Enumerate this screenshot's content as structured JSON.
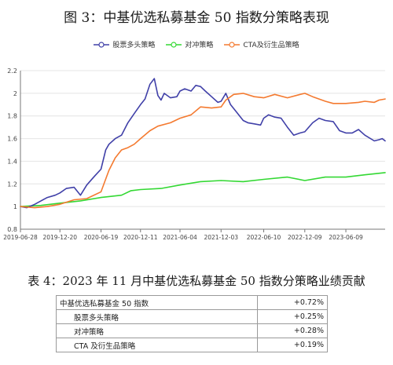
{
  "figure_title": "图 3：中基优选私募基金 50 指数分策略表现",
  "table_title": "表 4：2023 年 11 月中基优选私募基金 50 指数分策略业绩贡献",
  "colors": {
    "stock": "#4040a8",
    "hedge": "#33d833",
    "cta": "#f47a30",
    "grid": "#e4e4e4",
    "axis": "#777777"
  },
  "legend": [
    "股票多头策略",
    "对冲策略",
    "CTA及衍生品策略"
  ],
  "chart_data": {
    "type": "line",
    "title": "",
    "xlabel": "",
    "ylabel": "",
    "ylim": [
      0.8,
      2.2
    ],
    "yticks": [
      "0.8",
      "1",
      "1.2",
      "1.4",
      "1.6",
      "1.8",
      "2",
      "2.2"
    ],
    "xticks": [
      "2019-06-28",
      "2019-12-20",
      "2020-06-19",
      "2020-12-11",
      "2021-06-04",
      "2021-12-03",
      "2022-06-10",
      "2022-12-09",
      "2023-06-09"
    ],
    "grid": true,
    "legend_position": "top-center",
    "series": [
      {
        "name": "股票多头策略",
        "points": [
          [
            "2019-06-28",
            1.0
          ],
          [
            "2019-07-26",
            0.99
          ],
          [
            "2019-08-30",
            1.02
          ],
          [
            "2019-09-27",
            1.05
          ],
          [
            "2019-10-25",
            1.08
          ],
          [
            "2019-11-29",
            1.1
          ],
          [
            "2019-12-20",
            1.12
          ],
          [
            "2020-01-17",
            1.16
          ],
          [
            "2020-02-21",
            1.17
          ],
          [
            "2020-03-20",
            1.1
          ],
          [
            "2020-04-17",
            1.19
          ],
          [
            "2020-05-22",
            1.27
          ],
          [
            "2020-06-19",
            1.33
          ],
          [
            "2020-07-10",
            1.5
          ],
          [
            "2020-07-24",
            1.55
          ],
          [
            "2020-08-21",
            1.6
          ],
          [
            "2020-09-18",
            1.63
          ],
          [
            "2020-10-16",
            1.74
          ],
          [
            "2020-11-13",
            1.82
          ],
          [
            "2020-12-11",
            1.9
          ],
          [
            "2020-12-31",
            1.95
          ],
          [
            "2021-01-22",
            2.08
          ],
          [
            "2021-02-10",
            2.13
          ],
          [
            "2021-02-26",
            1.98
          ],
          [
            "2021-03-12",
            1.94
          ],
          [
            "2021-03-26",
            2.0
          ],
          [
            "2021-04-23",
            1.96
          ],
          [
            "2021-05-21",
            1.97
          ],
          [
            "2021-06-04",
            2.02
          ],
          [
            "2021-06-25",
            2.04
          ],
          [
            "2021-07-23",
            2.02
          ],
          [
            "2021-08-13",
            2.07
          ],
          [
            "2021-09-03",
            2.06
          ],
          [
            "2021-09-24",
            2.02
          ],
          [
            "2021-10-22",
            1.97
          ],
          [
            "2021-11-19",
            1.92
          ],
          [
            "2021-12-03",
            1.93
          ],
          [
            "2021-12-24",
            2.0
          ],
          [
            "2022-01-14",
            1.9
          ],
          [
            "2022-02-11",
            1.83
          ],
          [
            "2022-03-11",
            1.76
          ],
          [
            "2022-04-01",
            1.74
          ],
          [
            "2022-04-29",
            1.73
          ],
          [
            "2022-05-27",
            1.72
          ],
          [
            "2022-06-10",
            1.78
          ],
          [
            "2022-07-01",
            1.81
          ],
          [
            "2022-07-29",
            1.79
          ],
          [
            "2022-08-26",
            1.78
          ],
          [
            "2022-09-23",
            1.7
          ],
          [
            "2022-10-21",
            1.63
          ],
          [
            "2022-11-18",
            1.65
          ],
          [
            "2022-12-09",
            1.66
          ],
          [
            "2023-01-13",
            1.74
          ],
          [
            "2023-02-10",
            1.78
          ],
          [
            "2023-03-10",
            1.76
          ],
          [
            "2023-04-14",
            1.75
          ],
          [
            "2023-05-12",
            1.67
          ],
          [
            "2023-06-09",
            1.65
          ],
          [
            "2023-07-07",
            1.65
          ],
          [
            "2023-08-04",
            1.68
          ],
          [
            "2023-09-01",
            1.63
          ],
          [
            "2023-10-13",
            1.58
          ],
          [
            "2023-11-03",
            1.59
          ],
          [
            "2023-11-17",
            1.6
          ],
          [
            "2023-11-30",
            1.58
          ]
        ]
      },
      {
        "name": "对冲策略",
        "points": [
          [
            "2019-06-28",
            1.0
          ],
          [
            "2019-09-27",
            1.01
          ],
          [
            "2019-12-20",
            1.03
          ],
          [
            "2020-03-20",
            1.05
          ],
          [
            "2020-06-19",
            1.08
          ],
          [
            "2020-09-18",
            1.1
          ],
          [
            "2020-10-30",
            1.14
          ],
          [
            "2020-12-11",
            1.15
          ],
          [
            "2021-03-12",
            1.16
          ],
          [
            "2021-06-04",
            1.19
          ],
          [
            "2021-09-03",
            1.22
          ],
          [
            "2021-12-03",
            1.23
          ],
          [
            "2022-03-11",
            1.22
          ],
          [
            "2022-06-10",
            1.24
          ],
          [
            "2022-09-23",
            1.26
          ],
          [
            "2022-12-09",
            1.23
          ],
          [
            "2023-03-10",
            1.26
          ],
          [
            "2023-06-09",
            1.26
          ],
          [
            "2023-09-01",
            1.28
          ],
          [
            "2023-11-30",
            1.3
          ]
        ]
      },
      {
        "name": "CTA及衍生品策略",
        "points": [
          [
            "2019-06-28",
            1.0
          ],
          [
            "2019-08-30",
            0.99
          ],
          [
            "2019-10-25",
            1.0
          ],
          [
            "2019-12-20",
            1.02
          ],
          [
            "2020-02-21",
            1.06
          ],
          [
            "2020-04-17",
            1.07
          ],
          [
            "2020-06-19",
            1.13
          ],
          [
            "2020-07-24",
            1.32
          ],
          [
            "2020-08-21",
            1.43
          ],
          [
            "2020-09-18",
            1.5
          ],
          [
            "2020-10-16",
            1.52
          ],
          [
            "2020-11-13",
            1.55
          ],
          [
            "2020-12-11",
            1.6
          ],
          [
            "2021-01-22",
            1.67
          ],
          [
            "2021-02-26",
            1.71
          ],
          [
            "2021-04-23",
            1.74
          ],
          [
            "2021-06-04",
            1.78
          ],
          [
            "2021-07-23",
            1.81
          ],
          [
            "2021-09-03",
            1.88
          ],
          [
            "2021-10-22",
            1.87
          ],
          [
            "2021-12-03",
            1.88
          ],
          [
            "2021-12-24",
            1.94
          ],
          [
            "2022-01-28",
            1.99
          ],
          [
            "2022-03-11",
            2.0
          ],
          [
            "2022-04-29",
            1.97
          ],
          [
            "2022-06-10",
            1.96
          ],
          [
            "2022-07-29",
            1.99
          ],
          [
            "2022-09-23",
            1.96
          ],
          [
            "2022-11-18",
            1.99
          ],
          [
            "2022-12-09",
            2.0
          ],
          [
            "2023-01-13",
            1.97
          ],
          [
            "2023-03-10",
            1.93
          ],
          [
            "2023-04-14",
            1.91
          ],
          [
            "2023-06-09",
            1.91
          ],
          [
            "2023-08-04",
            1.92
          ],
          [
            "2023-09-01",
            1.93
          ],
          [
            "2023-10-13",
            1.92
          ],
          [
            "2023-11-03",
            1.94
          ],
          [
            "2023-11-30",
            1.95
          ]
        ]
      }
    ]
  },
  "table": {
    "rows": [
      {
        "label": "中基优选私募基金 50 指数",
        "value": "+0.72%",
        "indent": false
      },
      {
        "label": "股票多头策略",
        "value": "+0.25%",
        "indent": true
      },
      {
        "label": "对冲策略",
        "value": "+0.28%",
        "indent": true
      },
      {
        "label": "CTA 及衍生品策略",
        "value": "+0.19%",
        "indent": true
      }
    ]
  }
}
